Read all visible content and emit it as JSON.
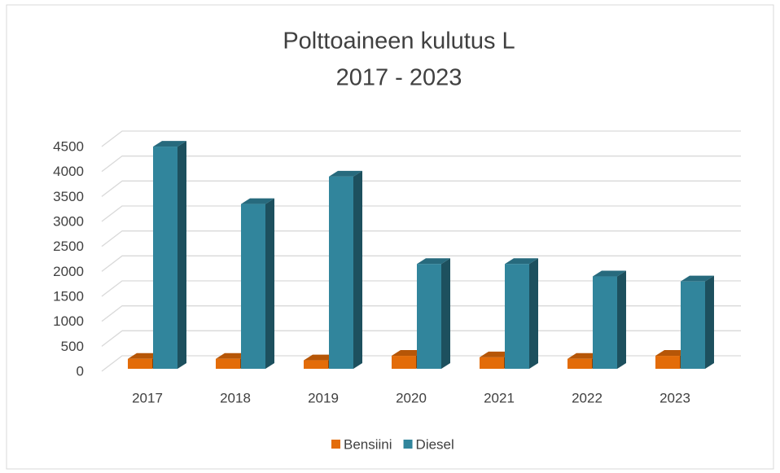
{
  "chart_data": {
    "type": "bar3d",
    "title": "Polttoaineen kulutus L",
    "subtitle": "2017 - 2023",
    "categories": [
      "2017",
      "2018",
      "2019",
      "2020",
      "2021",
      "2022",
      "2023"
    ],
    "series": [
      {
        "name": "Bensiini",
        "color": "#e36c09",
        "values": [
          200,
          200,
          170,
          260,
          230,
          200,
          260
        ]
      },
      {
        "name": "Diesel",
        "color": "#31859c",
        "values": [
          4450,
          3300,
          3850,
          2100,
          2100,
          1850,
          1750
        ]
      }
    ],
    "ylim": [
      0,
      4500
    ],
    "yticks": [
      0,
      500,
      1000,
      1500,
      2000,
      2500,
      3000,
      3500,
      4000,
      4500
    ],
    "grid": true,
    "legend": "bottom"
  }
}
